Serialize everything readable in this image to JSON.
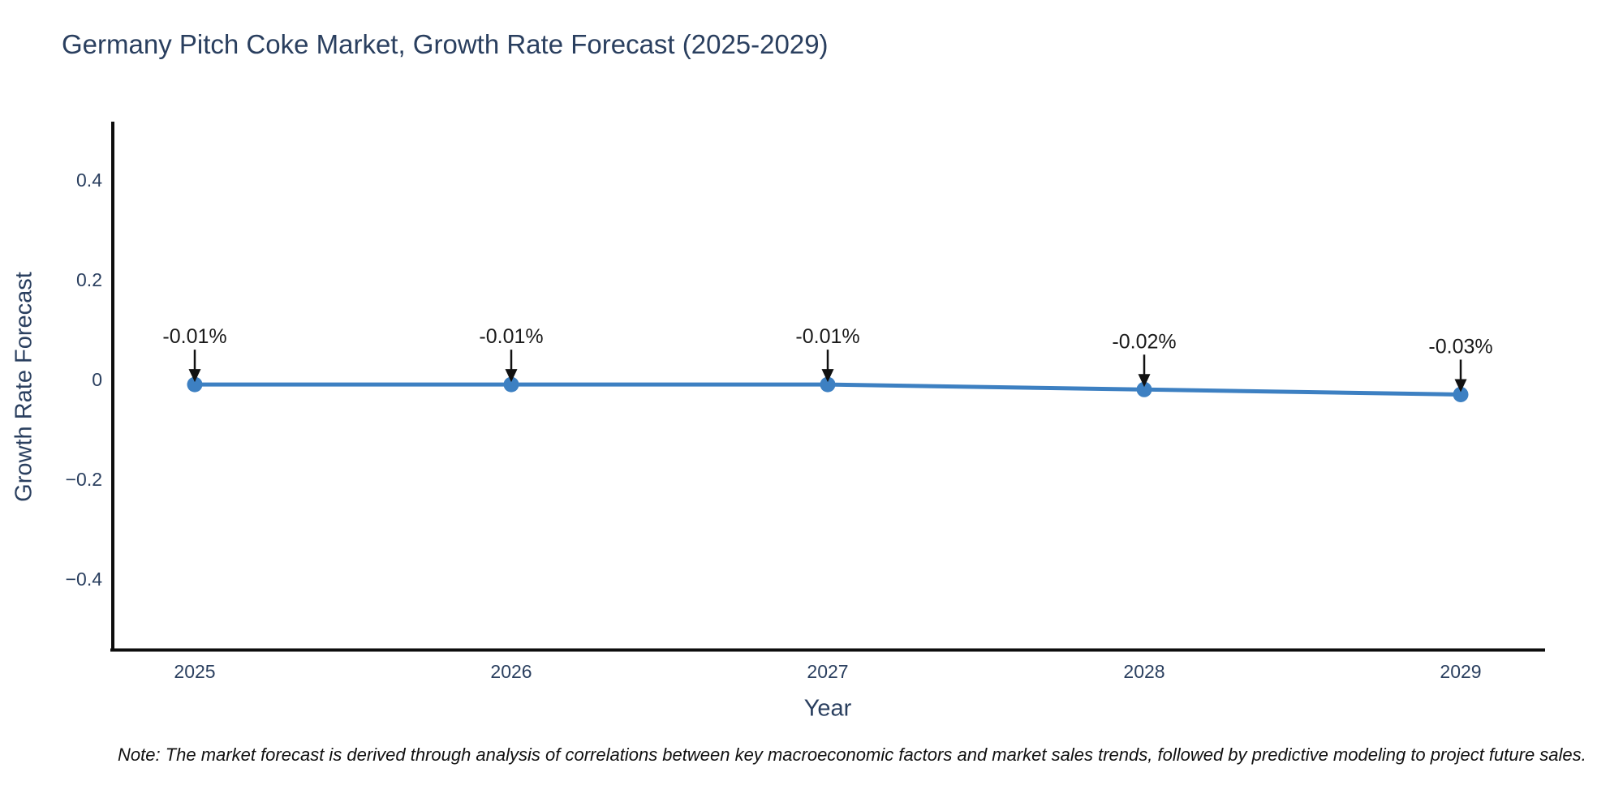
{
  "title": "Germany Pitch Coke Market, Growth Rate Forecast (2025-2029)",
  "note": "Note: The market forecast is derived through analysis of correlations between key macroeconomic factors and market sales trends, followed by predictive modeling to project future sales.",
  "colors": {
    "title_text": "#2a3f5f",
    "tick_text": "#2a3f5f",
    "axis_line": "#0d0d0d",
    "series_line": "#3d80c2",
    "marker_fill": "#3d80c2",
    "annotation_text": "#1a1a1a",
    "annotation_arrow": "#111111",
    "background": "#ffffff"
  },
  "chart_data": {
    "type": "line",
    "title": "Germany Pitch Coke Market, Growth Rate Forecast (2025-2029)",
    "xlabel": "Year",
    "ylabel": "Growth Rate Forecast",
    "x": [
      2025,
      2026,
      2027,
      2028,
      2029
    ],
    "series": [
      {
        "name": "Growth Rate Forecast",
        "values": [
          -0.01,
          -0.01,
          -0.01,
          -0.02,
          -0.03
        ]
      }
    ],
    "point_labels": [
      "-0.01%",
      "-0.01%",
      "-0.01%",
      "-0.02%",
      "-0.03%"
    ],
    "xtick_labels": [
      "2025",
      "2026",
      "2027",
      "2028",
      "2029"
    ],
    "ytick_values": [
      0.4,
      0.2,
      0,
      -0.2,
      -0.4
    ],
    "ytick_labels": [
      "0.4",
      "0.2",
      "0",
      "−0.2",
      "−0.4"
    ],
    "ylim": [
      -0.54,
      0.52
    ],
    "grid": false,
    "legend_position": "none",
    "annotation_style": "arrow-down-to-point"
  }
}
